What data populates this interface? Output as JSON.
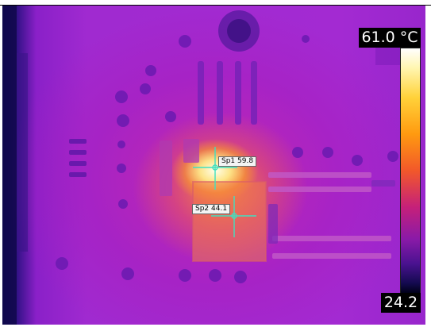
{
  "scale": {
    "max_label": "61.0 °C",
    "min_label": "24.2"
  },
  "spots": [
    {
      "label": "Sp1 59.8"
    },
    {
      "label": "Sp2 44.1"
    }
  ],
  "colors": {
    "background": "#a32ad2",
    "hotspot": "#fff6b0",
    "crosshair": "#40e0c0"
  }
}
